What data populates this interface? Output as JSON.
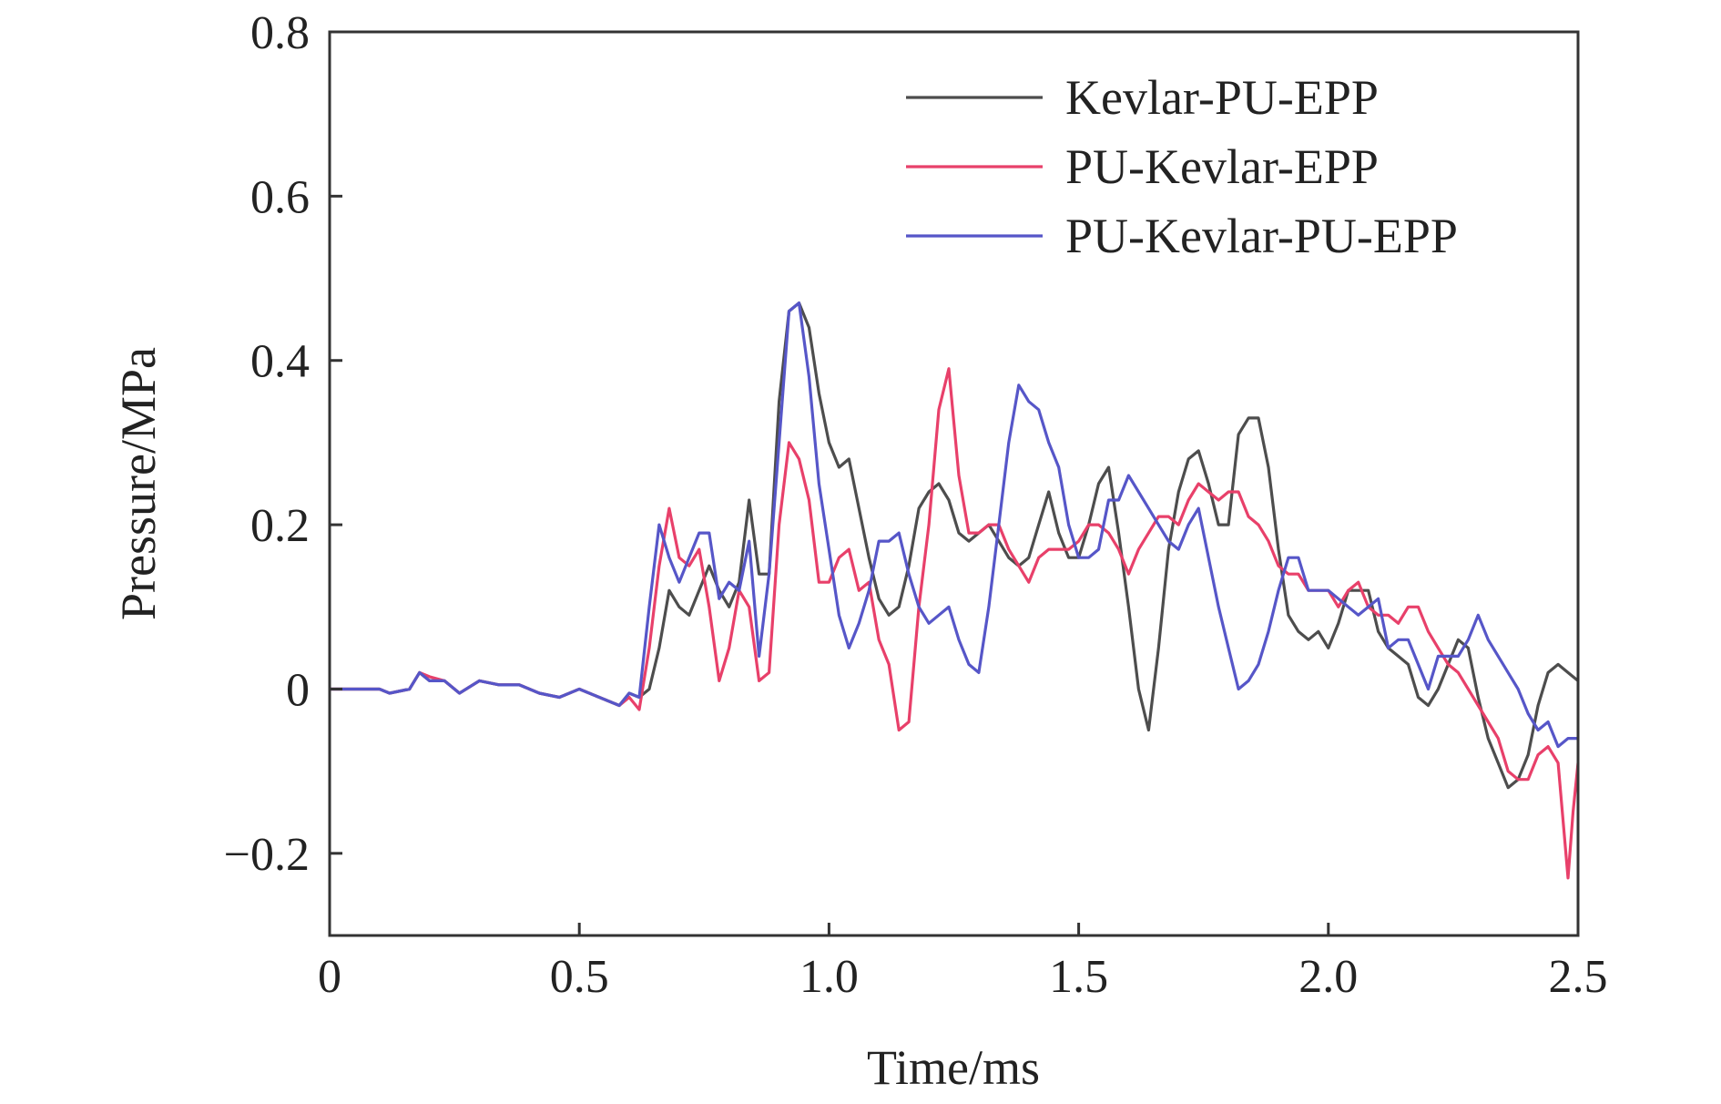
{
  "chart_data": {
    "type": "line",
    "title": "",
    "xlabel": "Time/ms",
    "ylabel": "Pressure/MPa",
    "xlim": [
      0,
      2.5
    ],
    "ylim": [
      -0.3,
      0.8
    ],
    "xticks": [
      0,
      0.5,
      1.0,
      1.5,
      2.0,
      2.5
    ],
    "xtick_labels": [
      "0",
      "0.5",
      "1.0",
      "1.5",
      "2.0",
      "2.5"
    ],
    "yticks": [
      -0.2,
      0,
      0.2,
      0.4,
      0.6,
      0.8
    ],
    "ytick_labels": [
      "−0.2",
      "0",
      "0.2",
      "0.4",
      "0.6",
      "0.8"
    ],
    "grid": false,
    "legend_position": "top-right",
    "series": [
      {
        "name": "Kevlar-PU-EPP",
        "color": "#4d4d4d",
        "x": [
          0,
          0.05,
          0.1,
          0.12,
          0.16,
          0.18,
          0.2,
          0.23,
          0.26,
          0.3,
          0.34,
          0.38,
          0.42,
          0.46,
          0.5,
          0.54,
          0.58,
          0.6,
          0.62,
          0.64,
          0.66,
          0.68,
          0.7,
          0.72,
          0.74,
          0.76,
          0.78,
          0.8,
          0.82,
          0.84,
          0.86,
          0.88,
          0.9,
          0.92,
          0.94,
          0.96,
          0.98,
          1.0,
          1.02,
          1.04,
          1.06,
          1.08,
          1.1,
          1.12,
          1.14,
          1.16,
          1.18,
          1.2,
          1.22,
          1.24,
          1.26,
          1.28,
          1.3,
          1.32,
          1.34,
          1.36,
          1.38,
          1.4,
          1.42,
          1.44,
          1.46,
          1.48,
          1.5,
          1.52,
          1.54,
          1.56,
          1.58,
          1.6,
          1.62,
          1.64,
          1.66,
          1.68,
          1.7,
          1.72,
          1.74,
          1.76,
          1.78,
          1.8,
          1.82,
          1.84,
          1.86,
          1.88,
          1.9,
          1.92,
          1.94,
          1.96,
          1.98,
          2.0,
          2.02,
          2.04,
          2.06,
          2.08,
          2.1,
          2.12,
          2.14,
          2.16,
          2.18,
          2.2,
          2.22,
          2.24,
          2.26,
          2.28,
          2.3,
          2.32,
          2.34,
          2.36,
          2.38,
          2.4,
          2.42,
          2.44,
          2.46,
          2.48,
          2.5
        ],
        "values": [
          0,
          0,
          0,
          -0.005,
          0,
          0.02,
          0.01,
          0.01,
          -0.005,
          0.01,
          0.005,
          0.005,
          -0.005,
          -0.01,
          0,
          -0.01,
          -0.02,
          -0.005,
          -0.01,
          0,
          0.05,
          0.12,
          0.1,
          0.09,
          0.12,
          0.15,
          0.12,
          0.1,
          0.13,
          0.23,
          0.14,
          0.14,
          0.35,
          0.46,
          0.47,
          0.44,
          0.36,
          0.3,
          0.27,
          0.28,
          0.22,
          0.16,
          0.11,
          0.09,
          0.1,
          0.15,
          0.22,
          0.24,
          0.25,
          0.23,
          0.19,
          0.18,
          0.19,
          0.2,
          0.18,
          0.16,
          0.15,
          0.16,
          0.2,
          0.24,
          0.19,
          0.16,
          0.16,
          0.2,
          0.25,
          0.27,
          0.19,
          0.1,
          0,
          -0.05,
          0.05,
          0.17,
          0.24,
          0.28,
          0.29,
          0.25,
          0.2,
          0.2,
          0.31,
          0.33,
          0.33,
          0.27,
          0.17,
          0.09,
          0.07,
          0.06,
          0.07,
          0.05,
          0.08,
          0.12,
          0.12,
          0.12,
          0.07,
          0.05,
          0.04,
          0.03,
          -0.01,
          -0.02,
          0,
          0.03,
          0.06,
          0.05,
          -0.01,
          -0.06,
          -0.09,
          -0.12,
          -0.11,
          -0.08,
          -0.02,
          0.02,
          0.03,
          0.02,
          0.01
        ]
      },
      {
        "name": "PU-Kevlar-EPP",
        "color": "#e8406a",
        "x": [
          0,
          0.05,
          0.1,
          0.12,
          0.16,
          0.18,
          0.2,
          0.23,
          0.26,
          0.3,
          0.34,
          0.38,
          0.42,
          0.46,
          0.5,
          0.54,
          0.58,
          0.6,
          0.62,
          0.64,
          0.66,
          0.68,
          0.7,
          0.72,
          0.74,
          0.76,
          0.78,
          0.8,
          0.82,
          0.84,
          0.86,
          0.88,
          0.9,
          0.92,
          0.94,
          0.96,
          0.98,
          1.0,
          1.02,
          1.04,
          1.06,
          1.08,
          1.1,
          1.12,
          1.14,
          1.16,
          1.18,
          1.2,
          1.22,
          1.24,
          1.26,
          1.28,
          1.3,
          1.32,
          1.34,
          1.36,
          1.38,
          1.4,
          1.42,
          1.44,
          1.46,
          1.48,
          1.5,
          1.52,
          1.54,
          1.56,
          1.58,
          1.6,
          1.62,
          1.64,
          1.66,
          1.68,
          1.7,
          1.72,
          1.74,
          1.76,
          1.78,
          1.8,
          1.82,
          1.84,
          1.86,
          1.88,
          1.9,
          1.92,
          1.94,
          1.96,
          1.98,
          2.0,
          2.02,
          2.04,
          2.06,
          2.08,
          2.1,
          2.12,
          2.14,
          2.16,
          2.18,
          2.2,
          2.22,
          2.24,
          2.26,
          2.28,
          2.3,
          2.32,
          2.34,
          2.36,
          2.38,
          2.4,
          2.42,
          2.44,
          2.46,
          2.48,
          2.49,
          2.5
        ],
        "values": [
          0,
          0,
          0,
          -0.005,
          0,
          0.02,
          0.015,
          0.01,
          -0.005,
          0.01,
          0.005,
          0.005,
          -0.005,
          -0.01,
          0,
          -0.01,
          -0.02,
          -0.01,
          -0.025,
          0.05,
          0.15,
          0.22,
          0.16,
          0.15,
          0.17,
          0.1,
          0.01,
          0.05,
          0.12,
          0.1,
          0.01,
          0.02,
          0.2,
          0.3,
          0.28,
          0.23,
          0.13,
          0.13,
          0.16,
          0.17,
          0.12,
          0.13,
          0.06,
          0.03,
          -0.05,
          -0.04,
          0.1,
          0.2,
          0.34,
          0.39,
          0.26,
          0.19,
          0.19,
          0.2,
          0.2,
          0.17,
          0.15,
          0.13,
          0.16,
          0.17,
          0.17,
          0.17,
          0.18,
          0.2,
          0.2,
          0.19,
          0.17,
          0.14,
          0.17,
          0.19,
          0.21,
          0.21,
          0.2,
          0.23,
          0.25,
          0.24,
          0.23,
          0.24,
          0.24,
          0.21,
          0.2,
          0.18,
          0.15,
          0.14,
          0.14,
          0.12,
          0.12,
          0.12,
          0.1,
          0.12,
          0.13,
          0.1,
          0.09,
          0.09,
          0.08,
          0.1,
          0.1,
          0.07,
          0.05,
          0.03,
          0.02,
          0.0,
          -0.02,
          -0.04,
          -0.06,
          -0.1,
          -0.11,
          -0.11,
          -0.08,
          -0.07,
          -0.09,
          -0.23,
          -0.15,
          -0.09
        ]
      },
      {
        "name": "PU-Kevlar-PU-EPP",
        "color": "#5656c8",
        "x": [
          0,
          0.05,
          0.1,
          0.12,
          0.16,
          0.18,
          0.2,
          0.23,
          0.26,
          0.3,
          0.34,
          0.38,
          0.42,
          0.46,
          0.5,
          0.54,
          0.58,
          0.6,
          0.62,
          0.64,
          0.66,
          0.68,
          0.7,
          0.72,
          0.74,
          0.76,
          0.78,
          0.8,
          0.82,
          0.84,
          0.86,
          0.88,
          0.9,
          0.92,
          0.94,
          0.96,
          0.98,
          1.0,
          1.02,
          1.04,
          1.06,
          1.08,
          1.1,
          1.12,
          1.14,
          1.16,
          1.18,
          1.2,
          1.22,
          1.24,
          1.26,
          1.28,
          1.3,
          1.32,
          1.34,
          1.36,
          1.38,
          1.4,
          1.42,
          1.44,
          1.46,
          1.48,
          1.5,
          1.52,
          1.54,
          1.56,
          1.58,
          1.6,
          1.62,
          1.64,
          1.66,
          1.68,
          1.7,
          1.72,
          1.74,
          1.76,
          1.78,
          1.8,
          1.82,
          1.84,
          1.86,
          1.88,
          1.9,
          1.92,
          1.94,
          1.96,
          1.98,
          2.0,
          2.02,
          2.04,
          2.06,
          2.08,
          2.1,
          2.12,
          2.14,
          2.16,
          2.18,
          2.2,
          2.22,
          2.24,
          2.26,
          2.28,
          2.3,
          2.32,
          2.34,
          2.36,
          2.38,
          2.4,
          2.42,
          2.44,
          2.46,
          2.48,
          2.5
        ],
        "values": [
          0,
          0,
          0,
          -0.005,
          0,
          0.02,
          0.01,
          0.01,
          -0.005,
          0.01,
          0.005,
          0.005,
          -0.005,
          -0.01,
          0,
          -0.01,
          -0.02,
          -0.005,
          -0.01,
          0.1,
          0.2,
          0.16,
          0.13,
          0.16,
          0.19,
          0.19,
          0.11,
          0.13,
          0.12,
          0.18,
          0.04,
          0.14,
          0.3,
          0.46,
          0.47,
          0.38,
          0.25,
          0.17,
          0.09,
          0.05,
          0.08,
          0.12,
          0.18,
          0.18,
          0.19,
          0.14,
          0.1,
          0.08,
          0.09,
          0.1,
          0.06,
          0.03,
          0.02,
          0.1,
          0.2,
          0.3,
          0.37,
          0.35,
          0.34,
          0.3,
          0.27,
          0.2,
          0.16,
          0.16,
          0.17,
          0.23,
          0.23,
          0.26,
          0.24,
          0.22,
          0.2,
          0.18,
          0.17,
          0.2,
          0.22,
          0.16,
          0.1,
          0.05,
          0.0,
          0.01,
          0.03,
          0.07,
          0.12,
          0.16,
          0.16,
          0.12,
          0.12,
          0.12,
          0.11,
          0.1,
          0.09,
          0.1,
          0.11,
          0.05,
          0.06,
          0.06,
          0.03,
          0.0,
          0.04,
          0.04,
          0.04,
          0.06,
          0.09,
          0.06,
          0.04,
          0.02,
          0.0,
          -0.03,
          -0.05,
          -0.04,
          -0.07,
          -0.06,
          -0.06
        ]
      }
    ]
  }
}
